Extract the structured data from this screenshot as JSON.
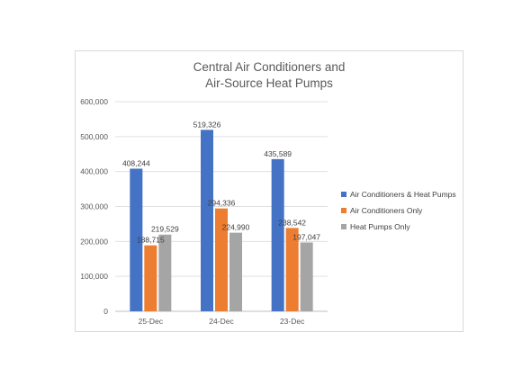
{
  "chart_data": {
    "type": "bar",
    "title_lines": [
      "Central Air Conditioners and",
      "Air-Source Heat Pumps"
    ],
    "categories": [
      "25-Dec",
      "24-Dec",
      "23-Dec"
    ],
    "series": [
      {
        "name": "Air Conditioners & Heat Pumps",
        "color": "#4472C4",
        "values": [
          408244,
          519326,
          435589
        ],
        "labels": [
          "408,244",
          "519,326",
          "435,589"
        ]
      },
      {
        "name": "Air Conditioners Only",
        "color": "#ED7D31",
        "values": [
          188715,
          294336,
          238542
        ],
        "labels": [
          "188,715",
          "294,336",
          "238,542"
        ]
      },
      {
        "name": "Heat Pumps Only",
        "color": "#A5A5A5",
        "values": [
          219529,
          224990,
          197047
        ],
        "labels": [
          "219,529",
          "224,990",
          "197,047"
        ]
      }
    ],
    "yticks": [
      0,
      100000,
      200000,
      300000,
      400000,
      500000,
      600000
    ],
    "ytick_labels": [
      "0",
      "100,000",
      "200,000",
      "300,000",
      "400,000",
      "500,000",
      "600,000"
    ],
    "ylim": [
      0,
      600000
    ],
    "grid": true,
    "legend_position": "right"
  }
}
